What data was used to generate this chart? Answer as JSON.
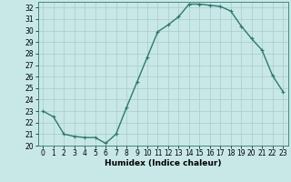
{
  "x": [
    0,
    1,
    2,
    3,
    4,
    5,
    6,
    7,
    8,
    9,
    10,
    11,
    12,
    13,
    14,
    15,
    16,
    17,
    18,
    19,
    20,
    21,
    22,
    23
  ],
  "y": [
    23.0,
    22.5,
    21.0,
    20.8,
    20.7,
    20.7,
    20.2,
    21.0,
    23.3,
    25.5,
    27.7,
    29.9,
    30.5,
    31.2,
    32.3,
    32.3,
    32.2,
    32.1,
    31.7,
    30.4,
    29.3,
    28.3,
    26.1,
    24.7
  ],
  "line_color": "#2d7a6e",
  "marker": "+",
  "marker_size": 3,
  "bg_color": "#c8e8e8",
  "grid_color": "#aacaca",
  "xlabel": "Humidex (Indice chaleur)",
  "ylim": [
    20,
    32.5
  ],
  "xlim": [
    -0.5,
    23.5
  ],
  "yticks": [
    20,
    21,
    22,
    23,
    24,
    25,
    26,
    27,
    28,
    29,
    30,
    31,
    32
  ],
  "xticks": [
    0,
    1,
    2,
    3,
    4,
    5,
    6,
    7,
    8,
    9,
    10,
    11,
    12,
    13,
    14,
    15,
    16,
    17,
    18,
    19,
    20,
    21,
    22,
    23
  ],
  "tick_label_fontsize": 5.5,
  "xlabel_fontsize": 6.5,
  "line_width": 1.0
}
